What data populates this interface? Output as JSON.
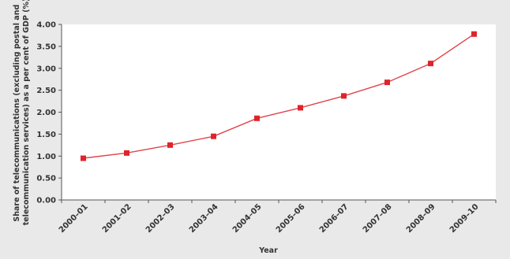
{
  "chart_data": {
    "type": "line",
    "title": "",
    "xlabel": "Year",
    "ylabel_lines": [
      "Share of telecommunications (excluding postal and",
      "telecommunication services) as a per cent of GDP (%)"
    ],
    "categories": [
      "2000–01",
      "2001–02",
      "2002–03",
      "2003–04",
      "2004–05",
      "2005–06",
      "2006–07",
      "2007–08",
      "2008–09",
      "2009–10"
    ],
    "series": [
      {
        "values": [
          0.95,
          1.07,
          1.25,
          1.45,
          1.86,
          2.1,
          2.37,
          2.68,
          3.11,
          3.78
        ]
      }
    ],
    "ylim": [
      0,
      4
    ],
    "yticks": [
      "0.00",
      "0.50",
      "1.00",
      "1.50",
      "2.00",
      "2.50",
      "3.00",
      "3.50",
      "4.00"
    ],
    "grid": false,
    "legend": "none",
    "colors": {
      "line": "#e0454b",
      "marker": "#e0232b",
      "axis": "#555555",
      "plot_bg": "#ffffff"
    }
  }
}
